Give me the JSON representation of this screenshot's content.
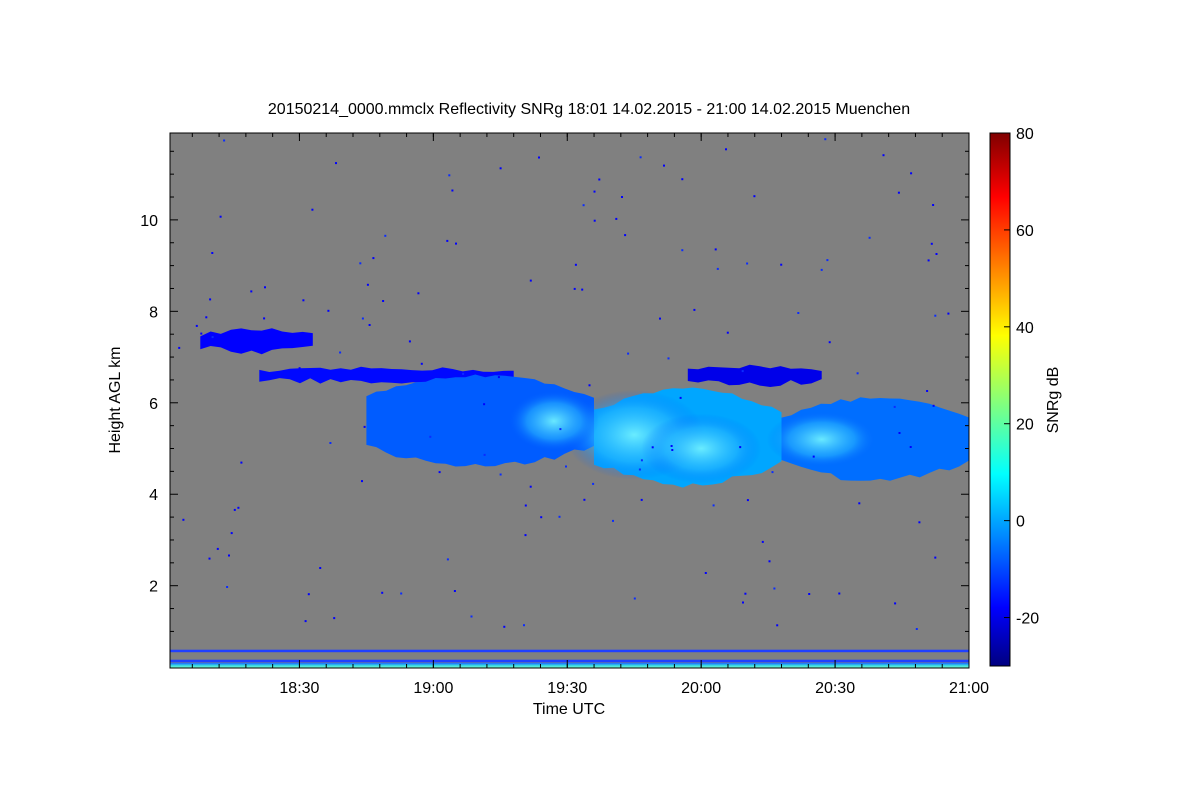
{
  "chart_data": {
    "type": "heatmap",
    "title": "20150214_0000.mmclx Reflectivity SNRg   18:01 14.02.2015 - 21:00 14.02.2015 Muenchen",
    "xlabel": "Time UTC",
    "ylabel": "Height AGL km",
    "xlim": [
      18.0167,
      21.0
    ],
    "ylim": [
      0.2,
      11.9
    ],
    "x_ticks": [
      {
        "value": 18.5,
        "label": "18:30"
      },
      {
        "value": 19.0,
        "label": "19:00"
      },
      {
        "value": 19.5,
        "label": "19:30"
      },
      {
        "value": 20.0,
        "label": "20:00"
      },
      {
        "value": 20.5,
        "label": "20:30"
      },
      {
        "value": 21.0,
        "label": "21:00"
      }
    ],
    "y_ticks": [
      {
        "value": 2,
        "label": "2"
      },
      {
        "value": 4,
        "label": "4"
      },
      {
        "value": 6,
        "label": "6"
      },
      {
        "value": 8,
        "label": "8"
      },
      {
        "value": 10,
        "label": "10"
      }
    ],
    "colorbar": {
      "label": "SNRg dB",
      "range": [
        -30,
        80
      ],
      "ticks": [
        {
          "value": -20,
          "label": "-20"
        },
        {
          "value": 0,
          "label": "0"
        },
        {
          "value": 20,
          "label": "20"
        },
        {
          "value": 40,
          "label": "40"
        },
        {
          "value": 60,
          "label": "60"
        },
        {
          "value": 80,
          "label": "80"
        }
      ],
      "colors": [
        "#000080",
        "#0000ff",
        "#00ffff",
        "#ffff00",
        "#ff0000",
        "#800000"
      ]
    },
    "background_color": "#808080",
    "cloud_regions": [
      {
        "name": "upper-layer-left",
        "t_start": 18.13,
        "t_end": 18.55,
        "h_bottom": 7.1,
        "h_top": 7.6,
        "snr_db": -18
      },
      {
        "name": "mid-layer-thin",
        "t_start": 18.35,
        "t_end": 19.3,
        "h_bottom": 6.45,
        "h_top": 6.75,
        "snr_db": -17
      },
      {
        "name": "main-layer-west",
        "t_start": 18.75,
        "t_end": 19.6,
        "h_bottom": 4.6,
        "h_top": 6.6,
        "snr_db": -8
      },
      {
        "name": "main-layer-center",
        "t_start": 19.6,
        "t_end": 20.3,
        "h_bottom": 4.2,
        "h_top": 6.3,
        "snr_db": 0
      },
      {
        "name": "main-layer-east",
        "t_start": 20.3,
        "t_end": 21.0,
        "h_bottom": 4.3,
        "h_top": 6.1,
        "snr_db": -6
      },
      {
        "name": "upper-fragment-east",
        "t_start": 19.95,
        "t_end": 20.45,
        "h_bottom": 6.4,
        "h_top": 6.8,
        "snr_db": -20
      }
    ],
    "near_ground_echo": {
      "h_bottom": 0.2,
      "h_top": 0.6,
      "snr_db": 5
    }
  }
}
